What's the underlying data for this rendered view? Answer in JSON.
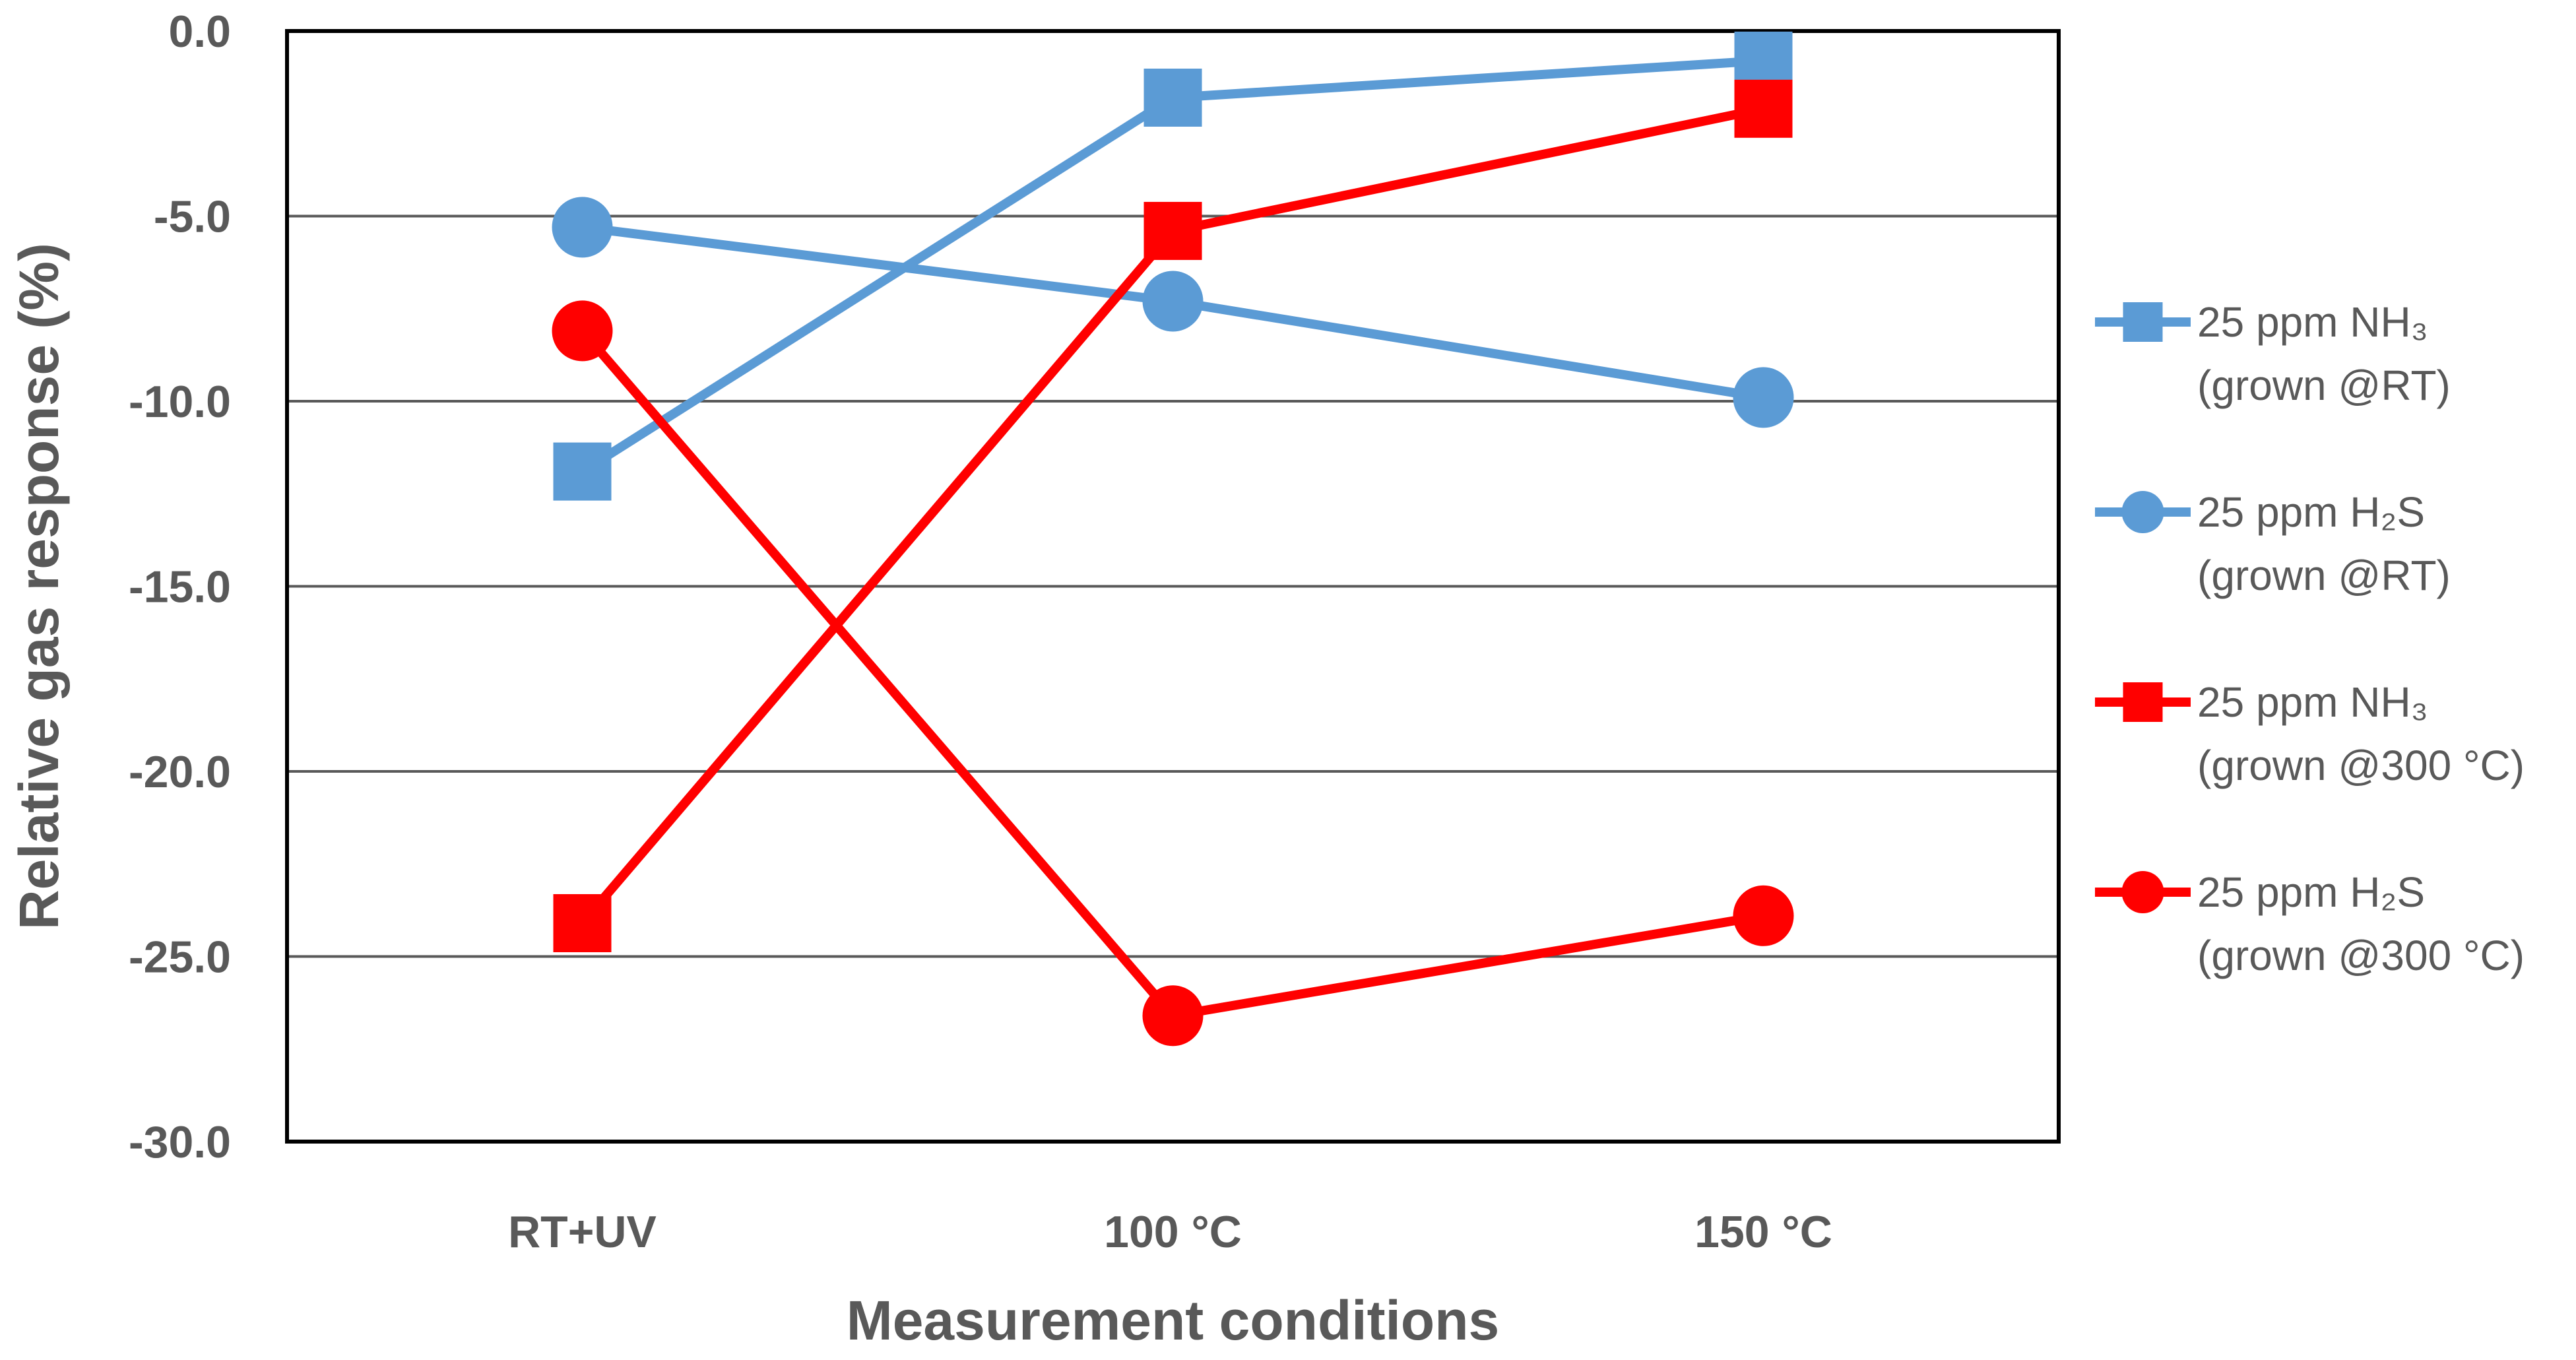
{
  "chart_data": {
    "type": "line",
    "title": "",
    "xlabel": "Measurement conditions",
    "ylabel": "Relative gas response (%)",
    "categories": [
      "RT+UV",
      "100 °C",
      "150 °C"
    ],
    "ylim": [
      -30,
      0
    ],
    "ytick_step": 5,
    "ytick_labels": [
      "0.0",
      "-5.0",
      "-10.0",
      "-15.0",
      "-20.0",
      "-25.0",
      "-30.0"
    ],
    "grid": "horizontal",
    "legend_position": "right",
    "series": [
      {
        "name": "25 ppm NH₃ (grown @RT)",
        "legend_line1": "25 ppm NH₃",
        "legend_line2": "(grown @RT)",
        "color": "#5B9BD5",
        "marker": "square",
        "values": [
          -11.9,
          -1.8,
          -0.8
        ]
      },
      {
        "name": "25 ppm H₂S (grown @RT)",
        "legend_line1": "25 ppm H₂S",
        "legend_line2": "(grown @RT)",
        "color": "#5B9BD5",
        "marker": "circle",
        "values": [
          -5.3,
          -7.3,
          -9.9
        ]
      },
      {
        "name": "25 ppm NH₃ (grown @300 °C)",
        "legend_line1": "25 ppm NH₃",
        "legend_line2": "(grown @300 °C)",
        "color": "#FF0000",
        "marker": "square",
        "values": [
          -24.1,
          -5.4,
          -2.1
        ]
      },
      {
        "name": "25 ppm H₂S (grown @300 °C)",
        "legend_line1": "25 ppm H₂S",
        "legend_line2": "(grown @300 °C)",
        "color": "#FF0000",
        "marker": "circle",
        "values": [
          -8.1,
          -26.6,
          -23.9
        ]
      }
    ]
  }
}
